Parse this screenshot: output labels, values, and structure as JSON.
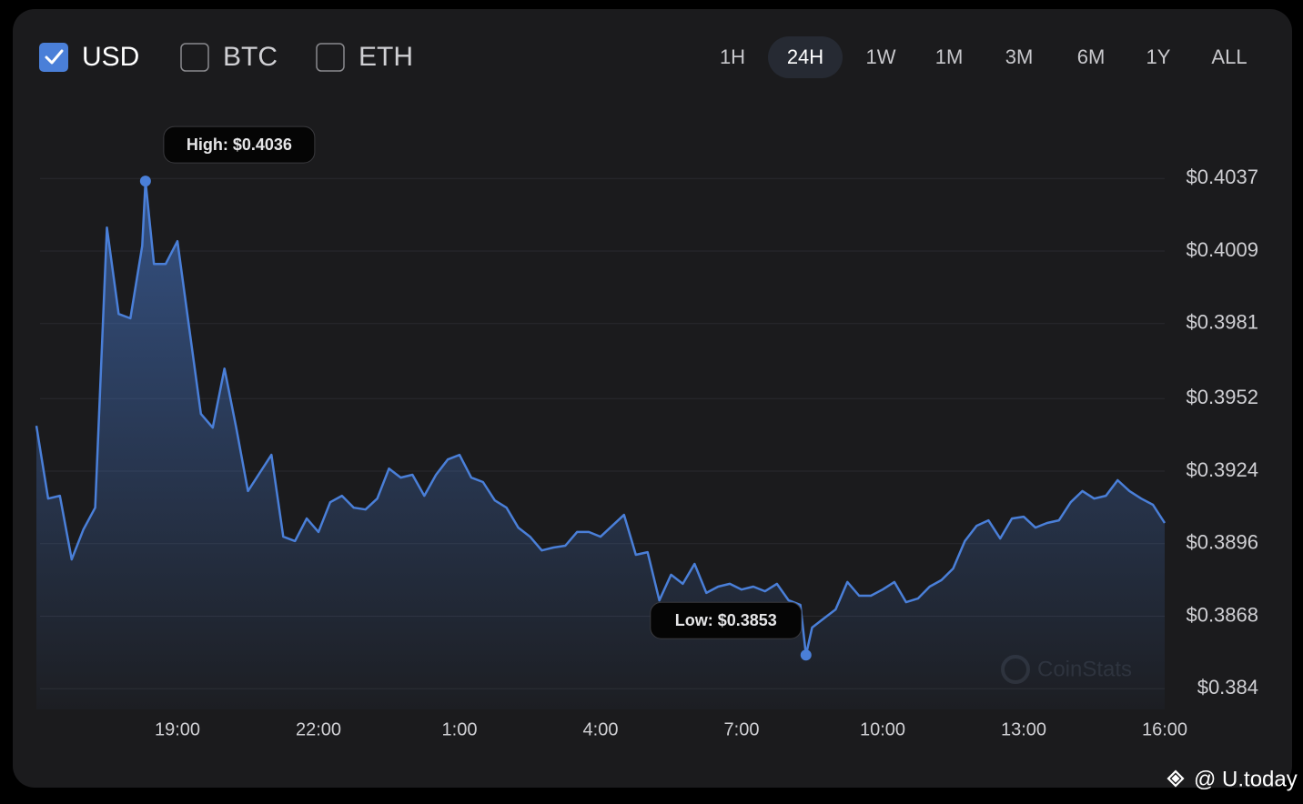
{
  "ui": {
    "currencies": [
      {
        "label": "USD",
        "checked": true
      },
      {
        "label": "BTC",
        "checked": false
      },
      {
        "label": "ETH",
        "checked": false
      }
    ],
    "ranges": [
      "1H",
      "24H",
      "1W",
      "1M",
      "3M",
      "6M",
      "1Y",
      "ALL"
    ],
    "active_range": "24H",
    "watermark": "CoinStats",
    "credit": "@ U.today"
  },
  "chart_data": {
    "type": "line",
    "color": "#4a7fd8",
    "grid": true,
    "x": [
      16,
      16.25,
      16.5,
      16.75,
      17,
      17.25,
      17.5,
      17.75,
      18,
      18.25,
      18.32,
      18.5,
      18.75,
      19,
      19.25,
      19.5,
      19.75,
      20,
      20.25,
      20.5,
      20.75,
      21,
      21.25,
      21.5,
      21.75,
      22,
      22.25,
      22.5,
      22.75,
      23,
      23.25,
      23.5,
      23.75,
      24,
      24.25,
      24.5,
      24.75,
      25,
      25.25,
      25.5,
      25.75,
      26,
      26.25,
      26.5,
      26.75,
      27,
      27.25,
      27.5,
      27.75,
      28,
      28.25,
      28.5,
      28.75,
      29,
      29.25,
      29.5,
      29.75,
      30,
      30.25,
      30.5,
      30.75,
      31,
      31.25,
      31.5,
      31.75,
      32,
      32.25,
      32.37,
      32.5,
      32.75,
      33,
      33.25,
      33.5,
      33.75,
      34,
      34.25,
      34.5,
      34.75,
      35,
      35.25,
      35.5,
      35.75,
      36,
      36.25,
      36.5,
      36.75,
      37,
      37.25,
      37.5,
      37.75,
      38,
      38.25,
      38.5,
      38.75,
      39,
      39.25,
      39.5,
      39.75,
      40
    ],
    "values": [
      0.39415,
      0.39134,
      0.39145,
      0.38899,
      0.39015,
      0.39099,
      0.4018,
      0.39847,
      0.3983,
      0.4011,
      0.4036,
      0.4004,
      0.4004,
      0.40128,
      0.39794,
      0.39461,
      0.39408,
      0.39636,
      0.39408,
      0.39163,
      0.39233,
      0.39303,
      0.38987,
      0.3897,
      0.39057,
      0.39005,
      0.3912,
      0.39145,
      0.39099,
      0.39092,
      0.39134,
      0.3925,
      0.39215,
      0.39226,
      0.39145,
      0.39226,
      0.39285,
      0.39303,
      0.39215,
      0.39198,
      0.39127,
      0.39099,
      0.39022,
      0.38987,
      0.38934,
      0.38945,
      0.38952,
      0.39005,
      0.39005,
      0.38987,
      0.39029,
      0.39071,
      0.38917,
      0.38927,
      0.38741,
      0.3884,
      0.38805,
      0.38882,
      0.3877,
      0.38794,
      0.38805,
      0.38783,
      0.38794,
      0.38776,
      0.38805,
      0.38741,
      0.38724,
      0.3853,
      0.38636,
      0.38671,
      0.38706,
      0.38812,
      0.38759,
      0.38759,
      0.38783,
      0.38812,
      0.38734,
      0.38748,
      0.38794,
      0.38819,
      0.38864,
      0.3897,
      0.39029,
      0.3905,
      0.3898,
      0.39057,
      0.39064,
      0.39022,
      0.3904,
      0.3905,
      0.3912,
      0.39163,
      0.39134,
      0.39145,
      0.39205,
      0.39163,
      0.39134,
      0.3911,
      0.3904
    ],
    "xlim": [
      16,
      40
    ],
    "xticks": [
      {
        "value": 19,
        "label": "19:00"
      },
      {
        "value": 22,
        "label": "22:00"
      },
      {
        "value": 25,
        "label": "1:00"
      },
      {
        "value": 28,
        "label": "4:00"
      },
      {
        "value": 31,
        "label": "7:00"
      },
      {
        "value": 34,
        "label": "10:00"
      },
      {
        "value": 37,
        "label": "13:00"
      },
      {
        "value": 40,
        "label": "16:00"
      }
    ],
    "ylim": [
      0.3832,
      0.4042
    ],
    "yticks": [
      {
        "value": 0.4037,
        "label": "$0.4037"
      },
      {
        "value": 0.4009,
        "label": "$0.4009"
      },
      {
        "value": 0.3981,
        "label": "$0.3981"
      },
      {
        "value": 0.3952,
        "label": "$0.3952"
      },
      {
        "value": 0.3924,
        "label": "$0.3924"
      },
      {
        "value": 0.3896,
        "label": "$0.3896"
      },
      {
        "value": 0.3868,
        "label": "$0.3868"
      },
      {
        "value": 0.384,
        "label": "$0.384"
      }
    ],
    "annotations": [
      {
        "text": "High: $0.4036",
        "x": 18.32,
        "y": 0.4036
      },
      {
        "text": "Low: $0.3853",
        "x": 32.37,
        "y": 0.3853
      }
    ]
  }
}
